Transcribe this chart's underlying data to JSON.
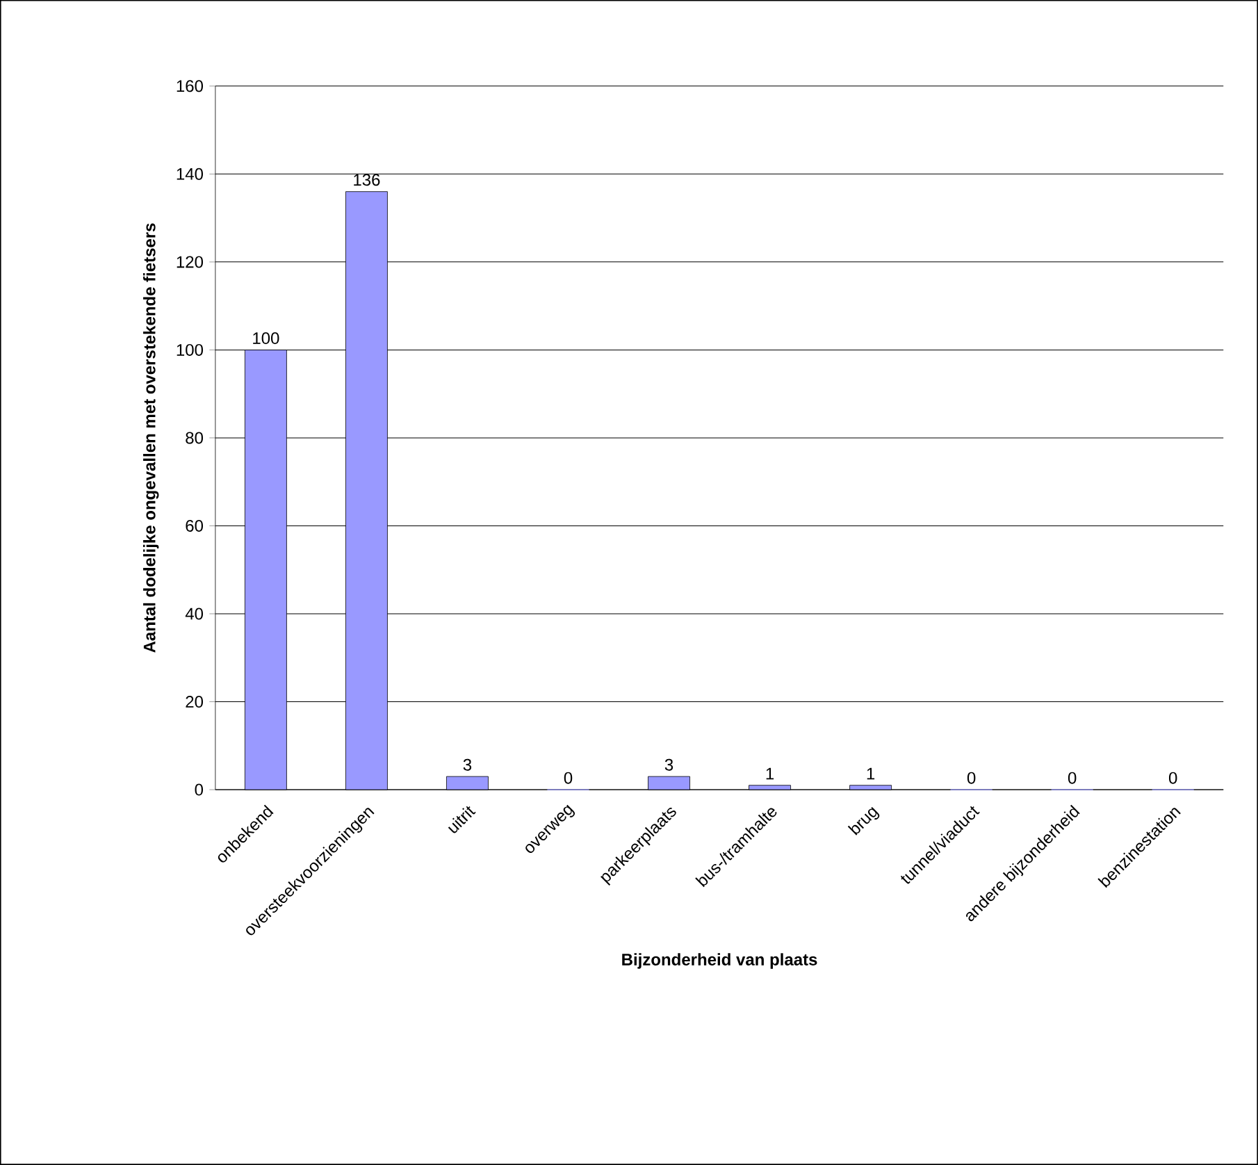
{
  "chart_data": {
    "type": "bar",
    "xlabel": "Bijzonderheid van plaats",
    "ylabel": "Aantal dodelijke ongevallen met overstekende fietsers",
    "categories": [
      "onbekend",
      "oversteekvoorzieningen",
      "uitrit",
      "overweg",
      "parkeerplaats",
      "bus-/tramhalte",
      "brug",
      "tunnel/viaduct",
      "andere bijzonderheid",
      "benzinestation"
    ],
    "values": [
      100,
      136,
      3,
      0,
      3,
      1,
      1,
      0,
      0,
      0
    ],
    "color": "#9999ff",
    "ylim": [
      0,
      160
    ],
    "yticks": [
      0,
      20,
      40,
      60,
      80,
      100,
      120,
      140,
      160
    ],
    "grid": "y",
    "data_labels": true
  }
}
